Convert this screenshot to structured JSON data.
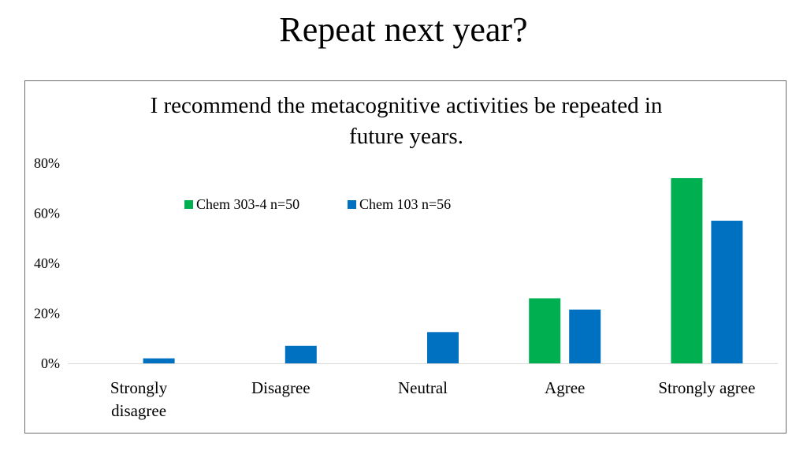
{
  "slide": {
    "title": "Repeat next year?"
  },
  "chart_data": {
    "type": "bar",
    "title_lines": [
      "I recommend the metacognitive activities be repeated in",
      "future years."
    ],
    "categories": [
      [
        "Strongly",
        "disagree"
      ],
      [
        "Disagree"
      ],
      [
        "Neutral"
      ],
      [
        "Agree"
      ],
      [
        "Strongly agree"
      ]
    ],
    "series": [
      {
        "name": "Chem 303-4 n=50",
        "color": "#00b050",
        "values": [
          0,
          0,
          0,
          26,
          74
        ]
      },
      {
        "name": "Chem 103 n=56",
        "color": "#0070c0",
        "values": [
          2,
          7,
          12.5,
          21.5,
          57
        ]
      }
    ],
    "y_ticks": [
      "0%",
      "20%",
      "40%",
      "60%",
      "80%"
    ],
    "ylim": [
      0,
      80
    ],
    "legend_position": "top",
    "grid": false
  }
}
